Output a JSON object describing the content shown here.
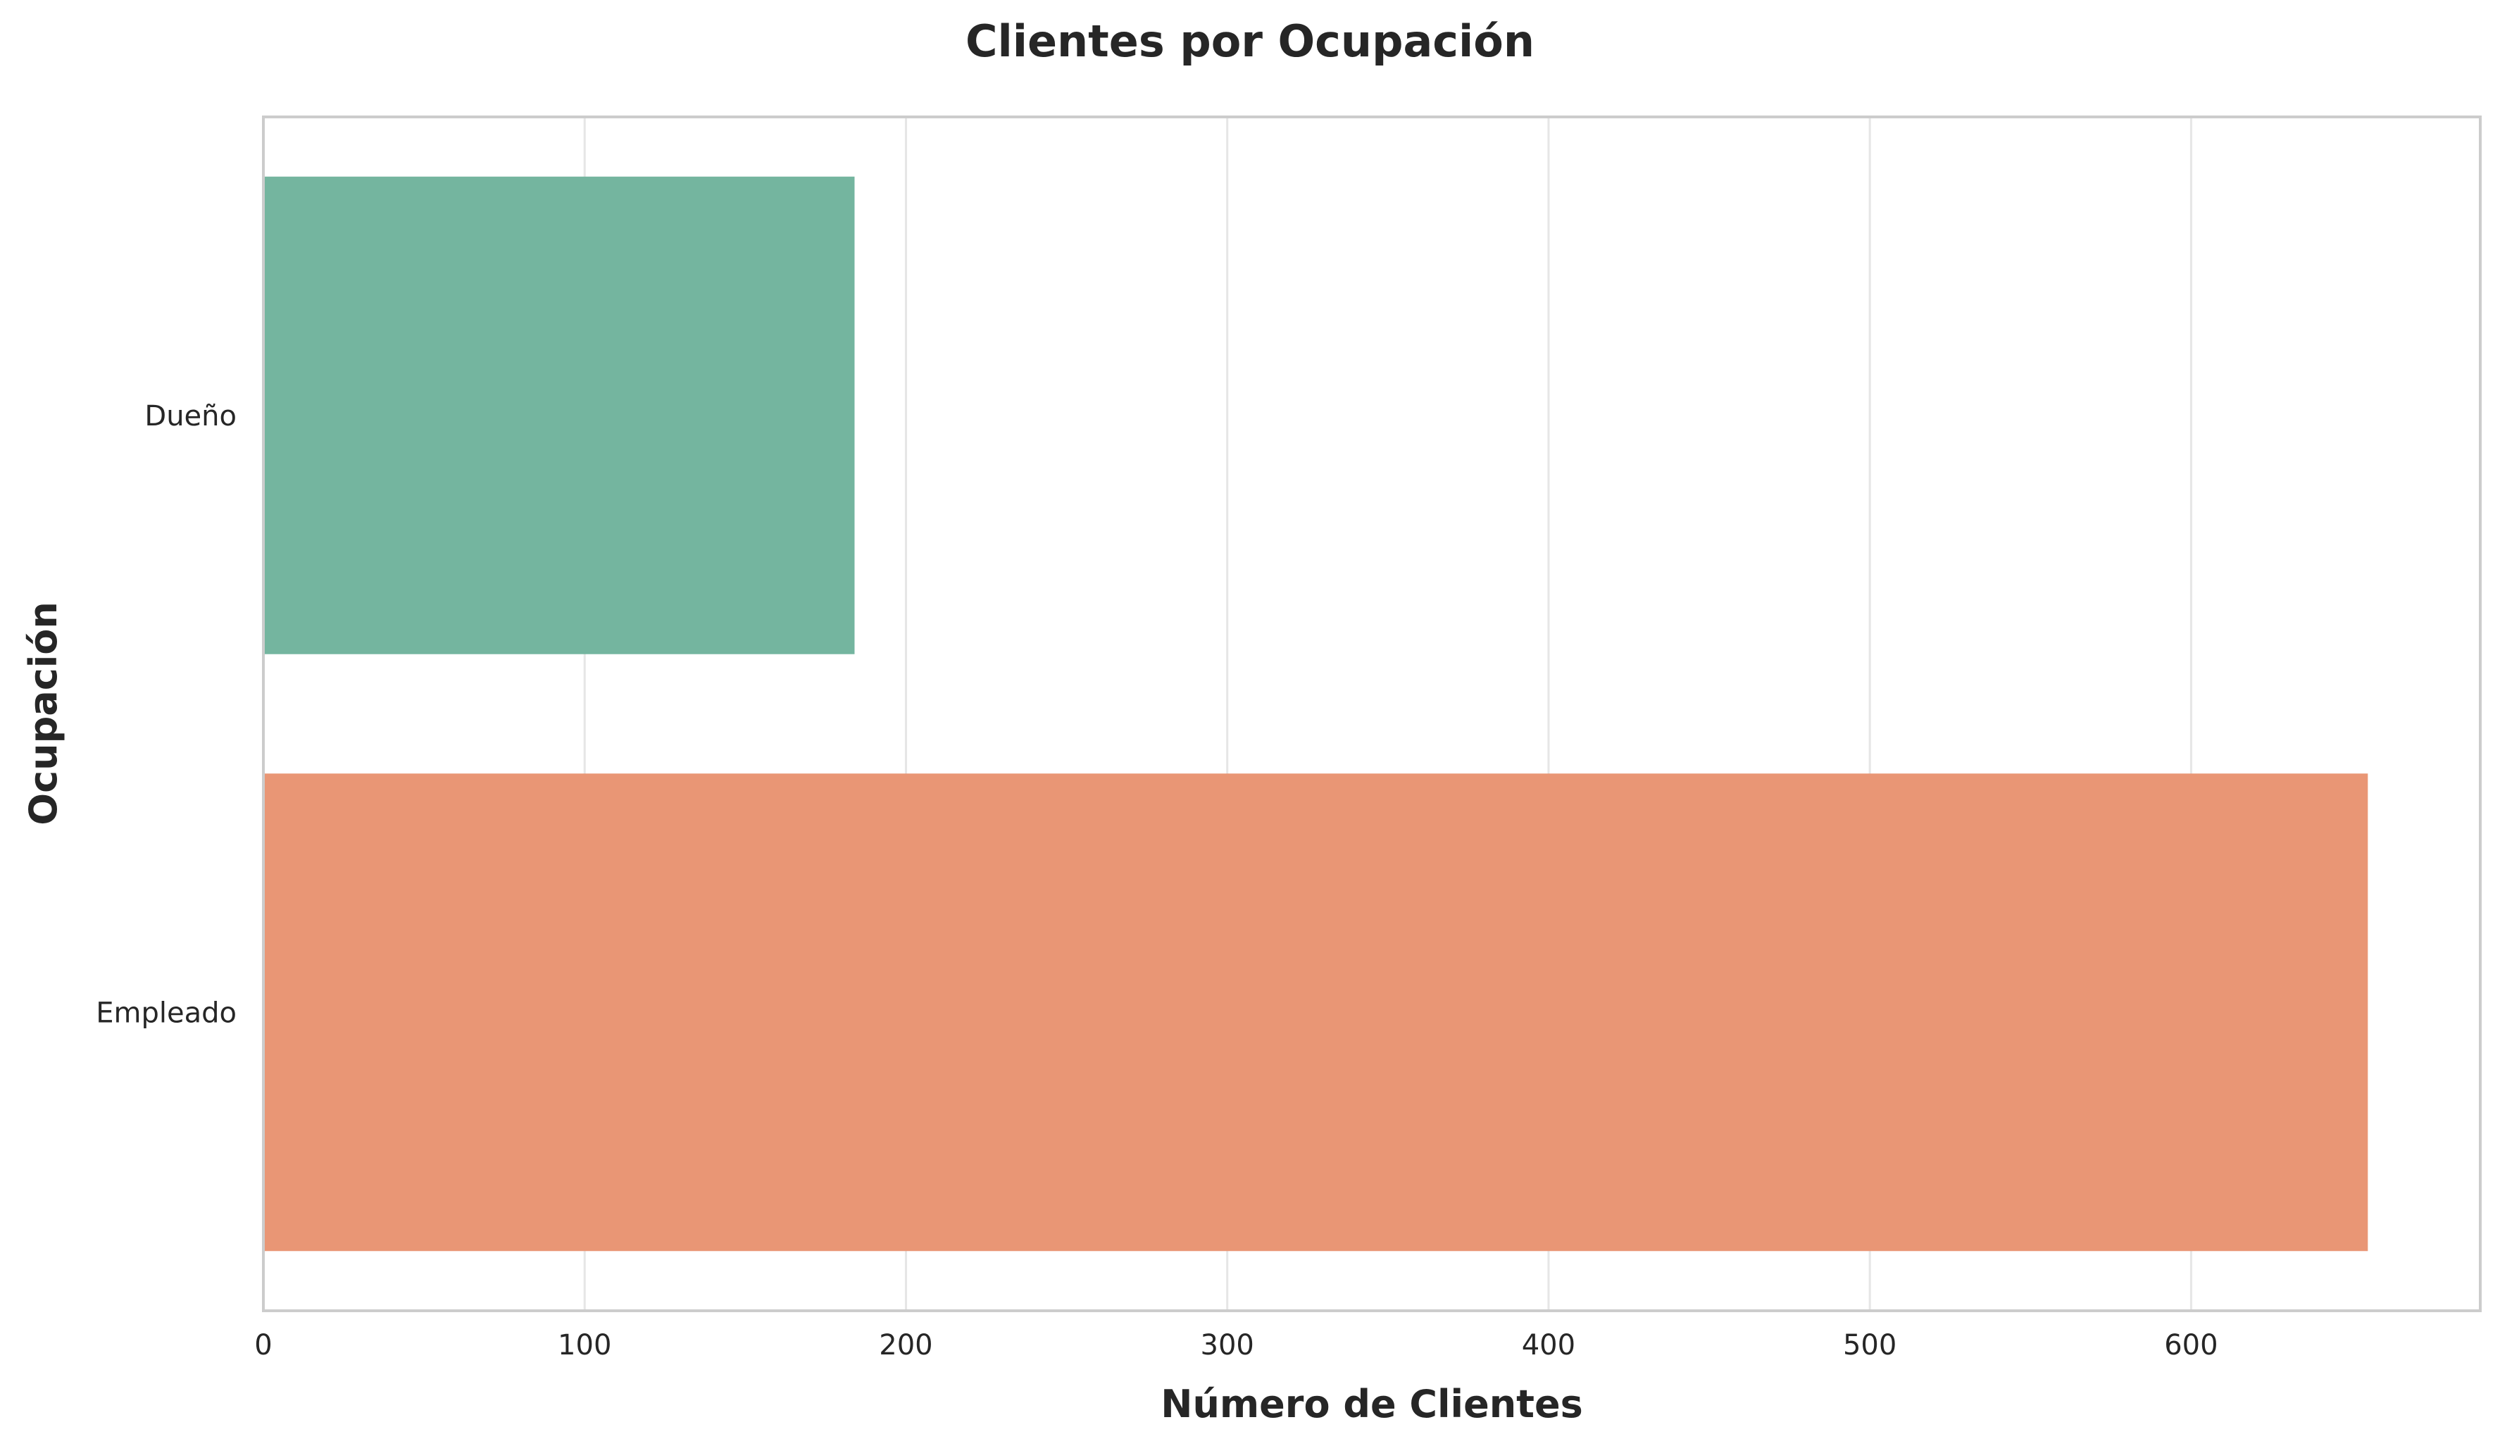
{
  "chart_data": {
    "type": "bar",
    "orientation": "horizontal",
    "title": "Clientes por Ocupación",
    "xlabel": "Número de Clientes",
    "ylabel": "Ocupación",
    "categories": [
      "Dueño",
      "Empleado"
    ],
    "values": [
      184,
      655
    ],
    "colors": [
      "#74b59f",
      "#e99675"
    ],
    "xlim": [
      0,
      690
    ],
    "xticks": [
      0,
      100,
      200,
      300,
      400,
      500,
      600
    ],
    "grid": true
  }
}
